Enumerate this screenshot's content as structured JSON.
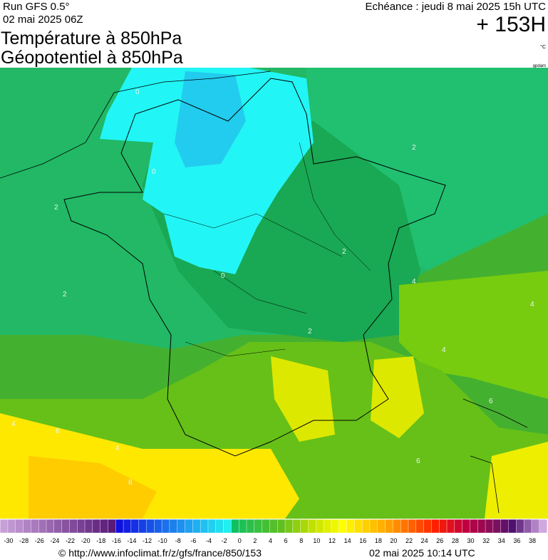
{
  "header": {
    "run": "Run GFS 0.5°",
    "run_date": "02 mai 2025 06Z",
    "title_1": "Température à 850hPa",
    "title_2": "Géopotentiel à 850hPa",
    "valid": "Echéance : jeudi 8 mai 2025 15h UTC",
    "lead": "+ 153H",
    "unit": "°C",
    "credit_small": "gpdam"
  },
  "map": {
    "contour_labels": [
      "0",
      "0",
      "0",
      "2",
      "2",
      "2",
      "2",
      "2",
      "4",
      "4",
      "4",
      "4",
      "4",
      "6",
      "6",
      "6",
      "8"
    ]
  },
  "legend": {
    "labels": [
      -30,
      -28,
      -26,
      -24,
      -22,
      -20,
      -18,
      -16,
      -14,
      -12,
      -10,
      -8,
      -6,
      -4,
      -2,
      0,
      2,
      4,
      6,
      8,
      10,
      12,
      14,
      16,
      18,
      20,
      22,
      24,
      26,
      28,
      30,
      32,
      34,
      36,
      38
    ]
  },
  "footer": {
    "url": "© http://www.infoclimat.fr/z/gfs/france/850/153",
    "generated": "02 mai 2025 10:14 UTC"
  }
}
